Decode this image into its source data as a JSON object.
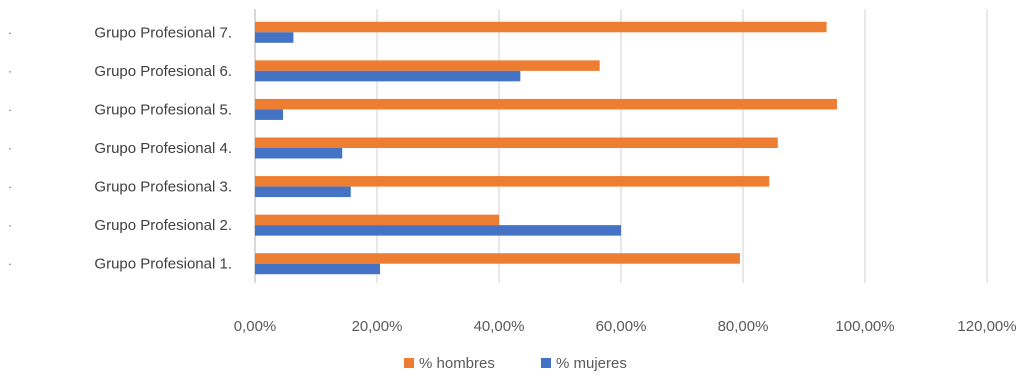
{
  "chart_data": {
    "type": "bar",
    "orientation": "horizontal",
    "categories": [
      "Grupo Profesional 1.",
      "Grupo Profesional 2.",
      "Grupo Profesional 3.",
      "Grupo Profesional 4.",
      "Grupo Profesional 5.",
      "Grupo Profesional 6.",
      "Grupo Profesional 7."
    ],
    "series": [
      {
        "name": "% hombres",
        "color": "#ED7D31",
        "values": [
          79.5,
          40.0,
          84.3,
          85.7,
          95.4,
          56.5,
          93.7
        ]
      },
      {
        "name": "% mujeres",
        "color": "#4472C4",
        "values": [
          20.5,
          60.0,
          15.7,
          14.3,
          4.6,
          43.5,
          6.3
        ]
      }
    ],
    "xlim": [
      0,
      120
    ],
    "xticks": [
      "0,00%",
      "20,00%",
      "40,00%",
      "60,00%",
      "80,00%",
      "100,00%",
      "120,00%"
    ],
    "grid": true,
    "legend_position": "bottom",
    "category_bullet": "·",
    "title": "",
    "xlabel": "",
    "ylabel": ""
  }
}
